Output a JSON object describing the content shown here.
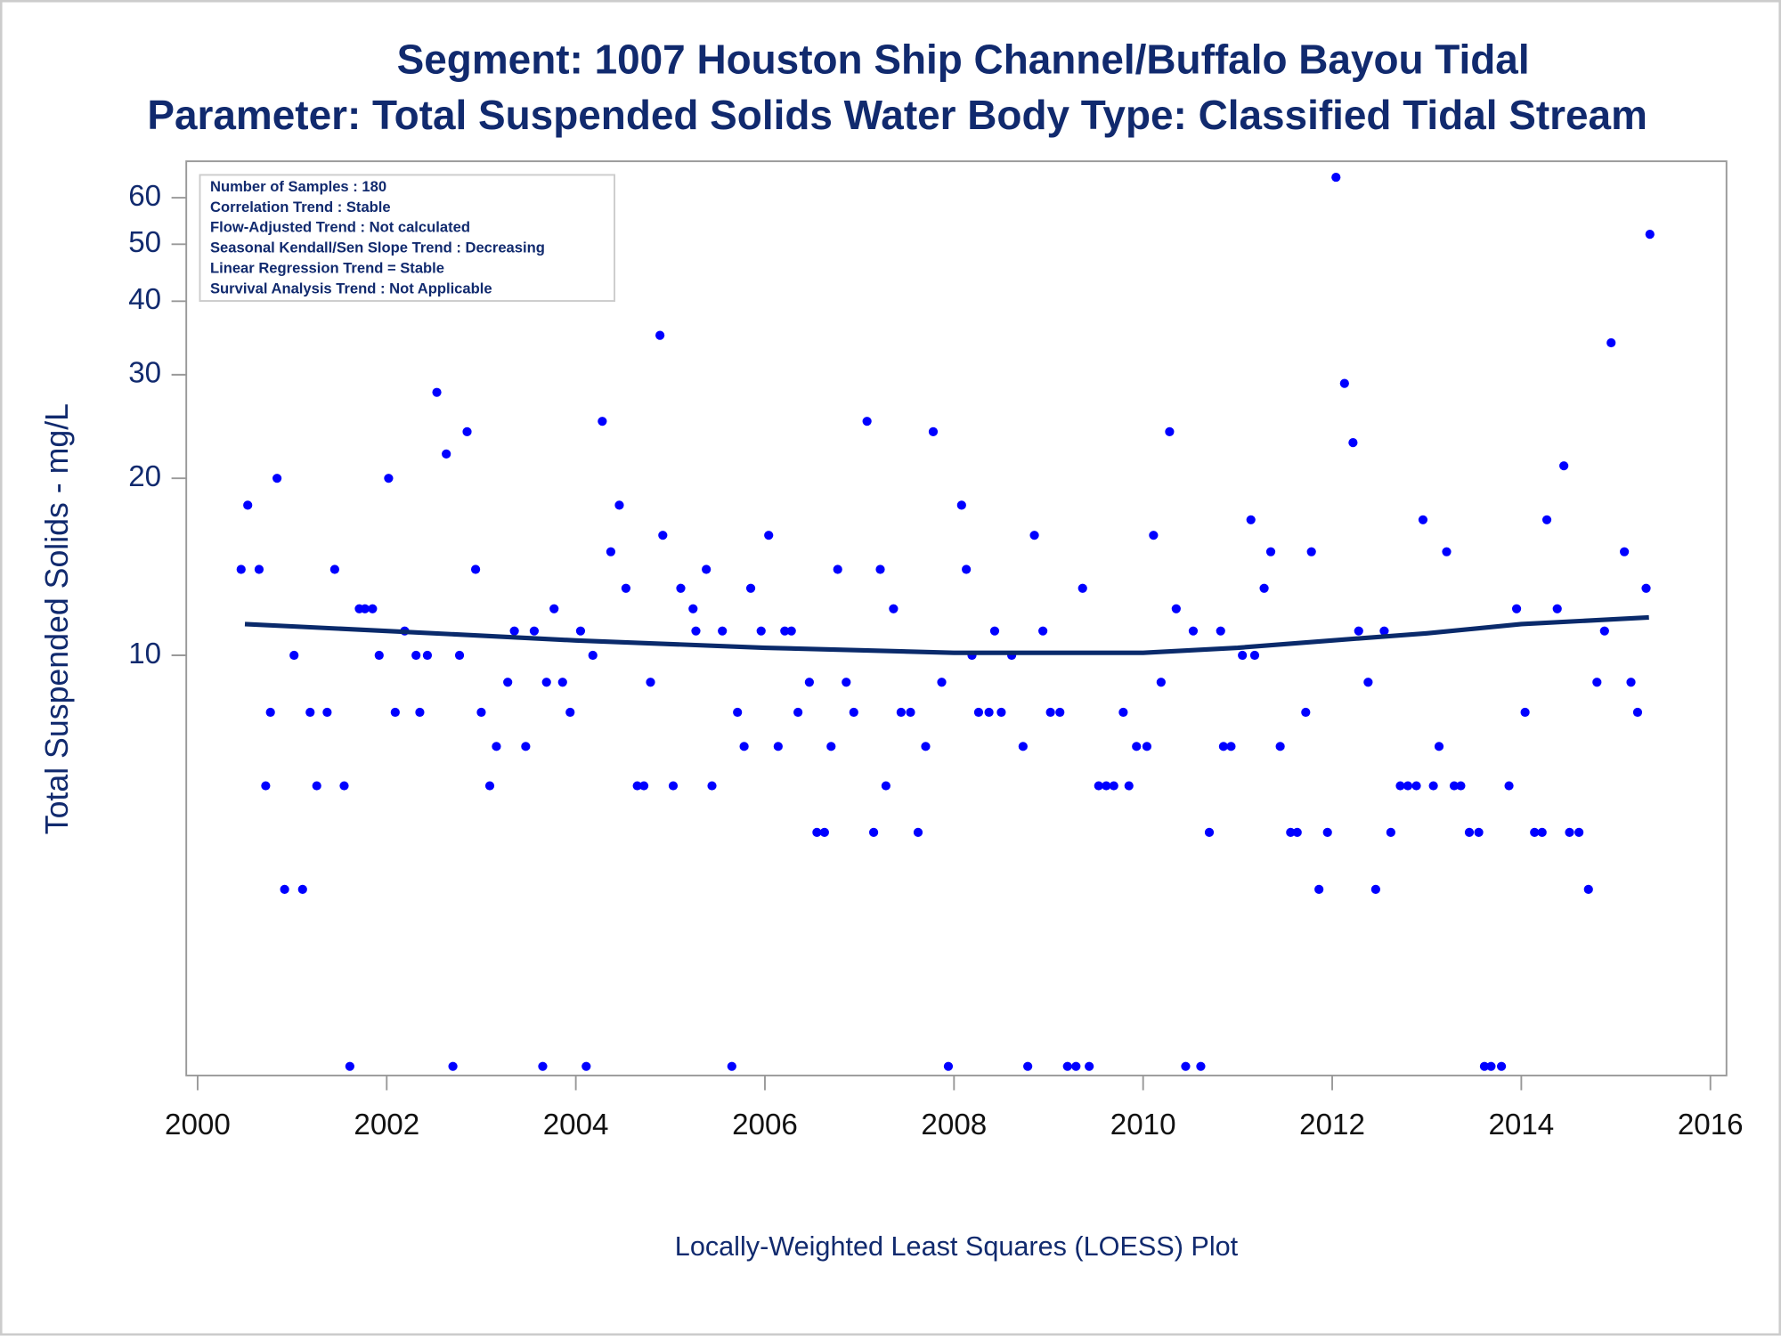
{
  "chart_data": {
    "type": "scatter",
    "title": "Segment: 1007  Houston Ship Channel/Buffalo Bayou Tidal",
    "subtitle": "Parameter: Total Suspended Solids   Water Body Type: Classified Tidal Stream",
    "y_label": "Total Suspended Solids - mg/L",
    "caption": "Locally-Weighted Least Squares (LOESS) Plot",
    "annotations": [
      "Number of Samples : 180",
      "Correlation Trend : Stable",
      "Flow-Adjusted Trend : Not calculated",
      "Seasonal Kendall/Sen Slope Trend : Decreasing",
      "Linear Regression Trend = Stable",
      "Survival Analysis Trend : Not Applicable"
    ],
    "y_scale": "log",
    "xlim": [
      1999.88,
      2016.17
    ],
    "xticks": [
      2000,
      2002,
      2004,
      2006,
      2008,
      2010,
      2012,
      2014,
      2016
    ],
    "ylim": [
      1.93,
      69.2
    ],
    "yticks": [
      10,
      20,
      30,
      40,
      50,
      60
    ],
    "series": [
      {
        "type": "scatter",
        "color": "#0000ff",
        "x": [
          2000.46,
          2000.53,
          2000.65,
          2000.72,
          2000.77,
          2000.84,
          2000.92,
          2001.02,
          2001.11,
          2001.19,
          2001.26,
          2001.37,
          2001.45,
          2001.55,
          2001.61,
          2001.71,
          2001.77,
          2001.85,
          2001.92,
          2002.02,
          2002.09,
          2002.19,
          2002.31,
          2002.35,
          2002.43,
          2002.53,
          2002.63,
          2002.7,
          2002.77,
          2002.85,
          2002.94,
          2003.0,
          2003.09,
          2003.16,
          2003.28,
          2003.35,
          2003.47,
          2003.56,
          2003.65,
          2003.69,
          2003.77,
          2003.86,
          2003.94,
          2004.05,
          2004.11,
          2004.18,
          2004.28,
          2004.37,
          2004.46,
          2004.53,
          2004.65,
          2004.72,
          2004.79,
          2004.89,
          2004.92,
          2005.03,
          2005.11,
          2005.24,
          2005.27,
          2005.38,
          2005.44,
          2005.55,
          2005.65,
          2005.71,
          2005.78,
          2005.85,
          2005.96,
          2006.04,
          2006.14,
          2006.21,
          2006.28,
          2006.35,
          2006.47,
          2006.55,
          2006.63,
          2006.7,
          2006.77,
          2006.86,
          2006.94,
          2007.08,
          2007.15,
          2007.22,
          2007.28,
          2007.36,
          2007.44,
          2007.54,
          2007.62,
          2007.7,
          2007.78,
          2007.87,
          2007.94,
          2008.08,
          2008.13,
          2008.19,
          2008.26,
          2008.37,
          2008.43,
          2008.5,
          2008.61,
          2008.73,
          2008.78,
          2008.85,
          2008.94,
          2009.02,
          2009.12,
          2009.2,
          2009.29,
          2009.36,
          2009.43,
          2009.53,
          2009.61,
          2009.69,
          2009.79,
          2009.85,
          2009.93,
          2010.04,
          2010.11,
          2010.19,
          2010.28,
          2010.35,
          2010.45,
          2010.53,
          2010.61,
          2010.7,
          2010.82,
          2010.85,
          2010.93,
          2011.05,
          2011.14,
          2011.18,
          2011.28,
          2011.35,
          2011.45,
          2011.56,
          2011.63,
          2011.72,
          2011.78,
          2011.86,
          2011.95,
          2012.04,
          2012.13,
          2012.22,
          2012.28,
          2012.38,
          2012.46,
          2012.55,
          2012.62,
          2012.72,
          2012.8,
          2012.89,
          2012.96,
          2013.07,
          2013.13,
          2013.21,
          2013.29,
          2013.36,
          2013.45,
          2013.55,
          2013.61,
          2013.68,
          2013.79,
          2013.87,
          2013.95,
          2014.04,
          2014.14,
          2014.22,
          2014.27,
          2014.38,
          2014.45,
          2014.51,
          2014.61,
          2014.71,
          2014.8,
          2014.88,
          2014.95,
          2015.09,
          2015.16,
          2015.23,
          2015.32,
          2015.36
        ],
        "values": [
          14,
          18,
          14,
          6,
          8,
          20,
          4,
          10,
          4,
          8,
          6,
          8,
          14,
          6,
          2,
          12,
          12,
          12,
          10,
          20,
          8,
          11,
          10,
          8,
          10,
          28,
          22,
          2,
          10,
          24,
          14,
          8,
          6,
          7,
          9,
          11,
          7,
          11,
          2,
          9,
          12,
          9,
          8,
          11,
          2,
          10,
          25,
          15,
          18,
          13,
          6,
          6,
          9,
          35,
          16,
          6,
          13,
          12,
          11,
          14,
          6,
          11,
          2,
          8,
          7,
          13,
          11,
          16,
          7,
          11,
          11,
          8,
          9,
          5,
          5,
          7,
          14,
          9,
          8,
          25,
          5,
          14,
          6,
          12,
          8,
          8,
          5,
          7,
          24,
          9,
          2,
          18,
          14,
          10,
          8,
          8,
          11,
          8,
          10,
          7,
          2,
          16,
          11,
          8,
          8,
          2,
          2,
          13,
          2,
          6,
          6,
          6,
          8,
          6,
          7,
          7,
          16,
          9,
          24,
          12,
          2,
          11,
          2,
          5,
          11,
          7,
          7,
          10,
          17,
          10,
          13,
          15,
          7,
          5,
          5,
          8,
          15,
          4,
          5,
          65,
          29,
          23,
          11,
          9,
          4,
          11,
          5,
          6,
          6,
          6,
          17,
          6,
          7,
          15,
          6,
          6,
          5,
          5,
          2,
          2,
          2,
          6,
          12,
          8,
          5,
          5,
          17,
          12,
          21,
          5,
          5,
          4,
          9,
          11,
          34,
          15,
          9,
          8,
          13,
          52
        ]
      },
      {
        "type": "line",
        "color": "#0a2a6b",
        "x": [
          2000.5,
          2001,
          2002,
          2003,
          2004,
          2005,
          2006,
          2007,
          2008,
          2009,
          2010,
          2011,
          2012,
          2013,
          2014,
          2015.35
        ],
        "values": [
          11.3,
          11.2,
          11.0,
          10.8,
          10.6,
          10.45,
          10.3,
          10.2,
          10.1,
          10.1,
          10.1,
          10.3,
          10.6,
          10.9,
          11.3,
          11.6
        ]
      }
    ]
  }
}
